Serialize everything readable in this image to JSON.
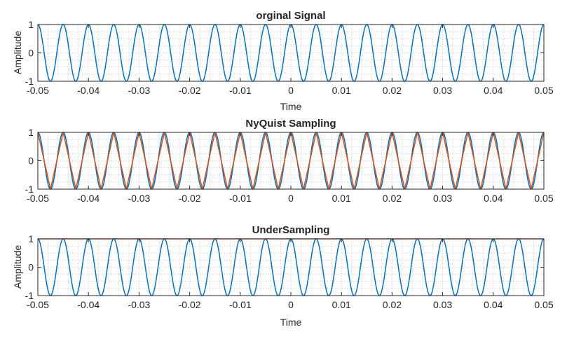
{
  "colors": {
    "signal": "#0072BD",
    "sampled": "#D95319",
    "grid": "#b9b9b9",
    "axis": "#262626"
  },
  "chart_data": [
    {
      "type": "line",
      "title": "orginal Signal",
      "xlabel": "Time",
      "ylabel": "Amplitude",
      "xlim": [
        -0.05,
        0.05
      ],
      "ylim": [
        -1,
        1
      ],
      "xticks": [
        "-0.05",
        "-0.04",
        "-0.03",
        "-0.02",
        "-0.01",
        "0",
        "0.01",
        "0.02",
        "0.03",
        "0.04",
        "0.05"
      ],
      "yticks": [
        "-1",
        "0",
        "1"
      ],
      "grid": "minor dotted",
      "series": [
        {
          "kind": "cos",
          "frequency_hz": 200,
          "amplitude": 1,
          "color_key": "signal"
        }
      ]
    },
    {
      "type": "line",
      "title": "NyQuist Sampling",
      "xlabel": "",
      "ylabel": "",
      "xlim": [
        -0.05,
        0.05
      ],
      "ylim": [
        -1,
        1
      ],
      "xticks": [
        "-0.05",
        "-0.04",
        "-0.03",
        "-0.02",
        "-0.01",
        "0",
        "0.01",
        "0.02",
        "0.03",
        "0.04",
        "0.05"
      ],
      "yticks": [
        "-1",
        "0",
        "1"
      ],
      "grid": "minor dotted",
      "series": [
        {
          "kind": "cos",
          "frequency_hz": 200,
          "amplitude": 1,
          "color_key": "signal"
        },
        {
          "kind": "sampled-cos",
          "frequency_hz": 200,
          "sample_rate_hz": 400,
          "amplitude": 1,
          "color_key": "sampled"
        }
      ]
    },
    {
      "type": "line",
      "title": "UnderSampling",
      "xlabel": "Time",
      "ylabel": "Amplitude",
      "xlim": [
        -0.05,
        0.05
      ],
      "ylim": [
        -1,
        1
      ],
      "xticks": [
        "-0.05",
        "-0.04",
        "-0.03",
        "-0.02",
        "-0.01",
        "0",
        "0.01",
        "0.02",
        "0.03",
        "0.04",
        "0.05"
      ],
      "yticks": [
        "-1",
        "0",
        "1"
      ],
      "grid": "minor dotted",
      "series": [
        {
          "kind": "cos",
          "frequency_hz": 200,
          "amplitude": 1,
          "color_key": "signal"
        },
        {
          "kind": "sampled-cos",
          "frequency_hz": 200,
          "sample_rate_hz": 200,
          "amplitude": 1,
          "color_key": "sampled"
        }
      ]
    }
  ]
}
